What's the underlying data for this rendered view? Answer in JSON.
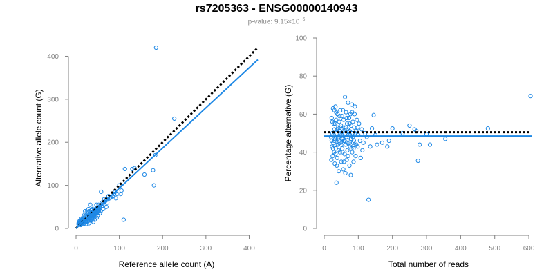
{
  "header": {
    "title": "rs7205363 - ENSG00000140943",
    "pvalue_prefix": "p-value: 9.15×10",
    "pvalue_exponent": "−6"
  },
  "colors": {
    "accent": "#1e88e5",
    "reference_line": "#000000",
    "axis": "#808080"
  },
  "chart_data": [
    {
      "type": "scatter",
      "title": "",
      "xlabel": "Reference allele count (A)",
      "ylabel": "Alternative allele count (G)",
      "xlim": [
        0,
        420
      ],
      "ylim": [
        0,
        420
      ],
      "x_ticks": [
        0,
        100,
        200,
        300,
        400
      ],
      "y_ticks": [
        0,
        100,
        200,
        300,
        400
      ],
      "grid": false,
      "lines": [
        {
          "name": "",
          "style": "dotted",
          "x": [
            0,
            420
          ],
          "y": [
            0,
            420
          ]
        },
        {
          "name": "",
          "style": "solid",
          "x": [
            0,
            420
          ],
          "y": [
            0,
            392
          ]
        }
      ],
      "points": [
        [
          185,
          420
        ],
        [
          227,
          255
        ],
        [
          183,
          170
        ],
        [
          178,
          135
        ],
        [
          180,
          100
        ],
        [
          158,
          125
        ],
        [
          135,
          140
        ],
        [
          130,
          138
        ],
        [
          113,
          138
        ],
        [
          110,
          20
        ],
        [
          100,
          100
        ],
        [
          105,
          88
        ],
        [
          103,
          80
        ],
        [
          95,
          80
        ],
        [
          90,
          85
        ],
        [
          85,
          75
        ],
        [
          78,
          70
        ],
        [
          75,
          75
        ],
        [
          72,
          60
        ],
        [
          70,
          50
        ],
        [
          65,
          68
        ],
        [
          65,
          55
        ],
        [
          63,
          45
        ],
        [
          60,
          60
        ],
        [
          58,
          85
        ],
        [
          57,
          40
        ],
        [
          55,
          50
        ],
        [
          55,
          35
        ],
        [
          53,
          40
        ],
        [
          52,
          55
        ],
        [
          50,
          48
        ],
        [
          50,
          30
        ],
        [
          48,
          42
        ],
        [
          48,
          25
        ],
        [
          47,
          55
        ],
        [
          46,
          35
        ],
        [
          45,
          45
        ],
        [
          45,
          28
        ],
        [
          44,
          38
        ],
        [
          43,
          20
        ],
        [
          42,
          48
        ],
        [
          42,
          32
        ],
        [
          41,
          25
        ],
        [
          40,
          40
        ],
        [
          40,
          15
        ],
        [
          39,
          35
        ],
        [
          38,
          45
        ],
        [
          38,
          22
        ],
        [
          37,
          30
        ],
        [
          36,
          38
        ],
        [
          35,
          42
        ],
        [
          35,
          18
        ],
        [
          34,
          28
        ],
        [
          33,
          35
        ],
        [
          33,
          55
        ],
        [
          32,
          25
        ],
        [
          31,
          40
        ],
        [
          30,
          30
        ],
        [
          30,
          12
        ],
        [
          29,
          45
        ],
        [
          28,
          20
        ],
        [
          28,
          35
        ],
        [
          27,
          28
        ],
        [
          26,
          15
        ],
        [
          25,
          25
        ],
        [
          25,
          38
        ],
        [
          24,
          20
        ],
        [
          23,
          30
        ],
        [
          23,
          10
        ],
        [
          22,
          22
        ],
        [
          21,
          18
        ],
        [
          21,
          40
        ],
        [
          20,
          25
        ],
        [
          20,
          12
        ],
        [
          19,
          20
        ],
        [
          18,
          15
        ],
        [
          18,
          30
        ],
        [
          17,
          22
        ],
        [
          16,
          12
        ],
        [
          16,
          25
        ],
        [
          15,
          18
        ],
        [
          15,
          10
        ],
        [
          14,
          20
        ],
        [
          14,
          14
        ],
        [
          13,
          16
        ],
        [
          12,
          12
        ],
        [
          12,
          22
        ],
        [
          11,
          15
        ],
        [
          11,
          8
        ],
        [
          10,
          18
        ],
        [
          10,
          10
        ],
        [
          10,
          13
        ],
        [
          9,
          12
        ],
        [
          9,
          15
        ],
        [
          8,
          10
        ],
        [
          8,
          14
        ],
        [
          7,
          11
        ],
        [
          7,
          16
        ],
        [
          6,
          12
        ],
        [
          6,
          9
        ],
        [
          22,
          14
        ],
        [
          24,
          16
        ],
        [
          26,
          22
        ],
        [
          28,
          28
        ],
        [
          30,
          24
        ],
        [
          32,
          30
        ],
        [
          34,
          32
        ],
        [
          36,
          26
        ],
        [
          38,
          36
        ],
        [
          40,
          34
        ],
        [
          42,
          38
        ],
        [
          44,
          42
        ],
        [
          46,
          44
        ],
        [
          48,
          36
        ],
        [
          50,
          40
        ],
        [
          52,
          46
        ],
        [
          54,
          50
        ],
        [
          56,
          48
        ],
        [
          60,
          52
        ],
        [
          62,
          58
        ],
        [
          66,
          62
        ],
        [
          68,
          64
        ],
        [
          70,
          66
        ],
        [
          74,
          68
        ],
        [
          80,
          72
        ],
        [
          88,
          80
        ],
        [
          92,
          70
        ],
        [
          20,
          16
        ],
        [
          18,
          20
        ],
        [
          16,
          18
        ],
        [
          14,
          12
        ],
        [
          13,
          20
        ],
        [
          12,
          16
        ],
        [
          27,
          22
        ],
        [
          29,
          18
        ],
        [
          31,
          20
        ],
        [
          35,
          28
        ],
        [
          37,
          24
        ],
        [
          41,
          30
        ],
        [
          43,
          34
        ],
        [
          47,
          38
        ],
        [
          49,
          46
        ],
        [
          51,
          36
        ],
        [
          53,
          44
        ]
      ]
    },
    {
      "type": "scatter",
      "title": "",
      "xlabel": "Total number of reads",
      "ylabel": "Percentage alternative (G)",
      "xlim": [
        0,
        610
      ],
      "ylim": [
        0,
        100
      ],
      "x_ticks": [
        0,
        100,
        200,
        300,
        400,
        500,
        600
      ],
      "y_ticks": [
        0,
        20,
        40,
        60,
        80,
        100
      ],
      "grid": false,
      "lines": [
        {
          "name": "",
          "style": "dotted",
          "x": [
            0,
            610
          ],
          "y": [
            50.5,
            50.5
          ]
        },
        {
          "name": "",
          "style": "solid",
          "x": [
            0,
            610
          ],
          "y": [
            48.5,
            48.5
          ]
        }
      ],
      "points": [
        [
          605,
          69.5
        ],
        [
          480,
          52.5
        ],
        [
          355,
          47
        ],
        [
          310,
          44
        ],
        [
          300,
          49.5
        ],
        [
          280,
          44
        ],
        [
          275,
          35.5
        ],
        [
          270,
          51
        ],
        [
          265,
          52
        ],
        [
          250,
          54
        ],
        [
          230,
          50
        ],
        [
          200,
          52.5
        ],
        [
          190,
          46
        ],
        [
          185,
          43
        ],
        [
          170,
          45
        ],
        [
          155,
          44
        ],
        [
          150,
          49
        ],
        [
          145,
          59.5
        ],
        [
          140,
          52.5
        ],
        [
          135,
          43
        ],
        [
          130,
          15
        ],
        [
          125,
          48
        ],
        [
          120,
          50
        ],
        [
          115,
          45
        ],
        [
          112,
          41
        ],
        [
          110,
          52
        ],
        [
          107,
          37
        ],
        [
          105,
          46
        ],
        [
          102,
          55
        ],
        [
          100,
          49
        ],
        [
          98,
          43
        ],
        [
          96,
          57
        ],
        [
          94,
          51
        ],
        [
          92,
          38
        ],
        [
          90,
          64
        ],
        [
          89,
          60
        ],
        [
          88,
          53
        ],
        [
          87,
          46
        ],
        [
          86,
          35
        ],
        [
          85,
          45
        ],
        [
          84,
          56
        ],
        [
          83,
          50
        ],
        [
          82,
          40
        ],
        [
          81,
          65
        ],
        [
          80,
          47
        ],
        [
          79,
          54
        ],
        [
          78,
          28
        ],
        [
          77,
          60
        ],
        [
          76,
          43
        ],
        [
          75,
          51
        ],
        [
          74,
          33
        ],
        [
          73,
          58
        ],
        [
          72,
          45
        ],
        [
          71,
          49
        ],
        [
          70,
          66
        ],
        [
          69,
          52
        ],
        [
          68,
          41
        ],
        [
          67,
          55
        ],
        [
          66,
          36
        ],
        [
          65,
          48
        ],
        [
          64,
          61
        ],
        [
          63,
          44
        ],
        [
          62,
          50
        ],
        [
          61,
          69
        ],
        [
          60,
          39
        ],
        [
          59,
          53
        ],
        [
          58,
          46
        ],
        [
          57,
          57
        ],
        [
          56,
          31
        ],
        [
          55,
          47
        ],
        [
          54,
          52
        ],
        [
          53,
          42
        ],
        [
          52,
          59
        ],
        [
          51,
          49
        ],
        [
          50,
          35
        ],
        [
          49,
          54
        ],
        [
          48,
          45
        ],
        [
          47,
          62
        ],
        [
          46,
          40
        ],
        [
          45,
          51
        ],
        [
          44,
          56
        ],
        [
          43,
          30
        ],
        [
          42,
          48
        ],
        [
          41,
          53
        ],
        [
          40,
          44
        ],
        [
          39,
          60
        ],
        [
          38,
          37
        ],
        [
          37,
          50
        ],
        [
          36,
          24
        ],
        [
          35,
          57
        ],
        [
          34,
          42
        ],
        [
          33,
          64
        ],
        [
          32,
          47
        ],
        [
          31,
          34
        ],
        [
          30,
          52
        ],
        [
          29,
          40
        ],
        [
          28,
          55
        ],
        [
          27,
          45
        ],
        [
          26,
          63
        ],
        [
          25,
          38
        ],
        [
          24,
          50
        ],
        [
          23,
          43
        ],
        [
          22,
          58
        ],
        [
          21,
          36
        ],
        [
          20,
          48
        ],
        [
          58,
          35
        ],
        [
          62,
          29
        ],
        [
          66,
          58
        ],
        [
          70,
          38
        ],
        [
          74,
          55
        ],
        [
          78,
          47
        ],
        [
          82,
          61
        ],
        [
          86,
          42
        ],
        [
          90,
          50
        ],
        [
          94,
          44
        ],
        [
          98,
          53
        ],
        [
          28,
          49
        ],
        [
          30,
          46
        ],
        [
          32,
          55
        ],
        [
          34,
          48
        ],
        [
          36,
          44
        ],
        [
          38,
          52
        ],
        [
          40,
          47
        ],
        [
          42,
          41
        ],
        [
          44,
          46
        ],
        [
          46,
          53
        ],
        [
          48,
          50
        ],
        [
          50,
          44
        ],
        [
          52,
          47
        ],
        [
          54,
          40
        ],
        [
          56,
          51
        ],
        [
          60,
          46
        ],
        [
          64,
          53
        ],
        [
          68,
          45
        ],
        [
          72,
          51
        ],
        [
          76,
          49
        ],
        [
          80,
          42
        ],
        [
          84,
          48
        ],
        [
          88,
          44
        ],
        [
          26,
          42
        ],
        [
          24,
          56
        ],
        [
          22,
          46
        ],
        [
          30,
          62
        ],
        [
          35,
          61
        ],
        [
          45,
          59
        ],
        [
          55,
          62
        ],
        [
          33,
          39
        ],
        [
          37,
          33
        ]
      ]
    }
  ]
}
